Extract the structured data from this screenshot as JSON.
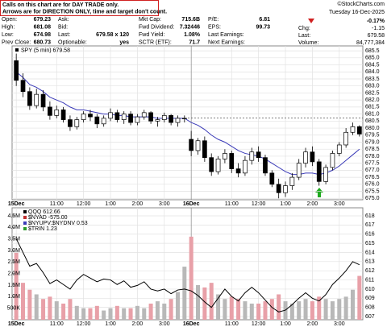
{
  "header": {
    "notice": [
      "Calls on this chart are for DAY TRADE only.",
      "Arrows are for DIRECTION ONLY, time and target don't count."
    ],
    "watermark": "©StockCharts.com",
    "date": "Tuesday 16-Dec-2025",
    "change_pct": "-0.17%",
    "quote": [
      [
        {
          "label": "Open:",
          "value": "679.23"
        },
        {
          "label": "Ask:"
        },
        {
          "label": "Mkt Cap:",
          "value": "715.6B"
        },
        {
          "label": "P/E:",
          "value": "6.81"
        }
      ],
      [
        {
          "label": "High:",
          "value": "681.08"
        },
        {
          "label": "Bid:"
        },
        {
          "label": "Fwd Dividend:",
          "value": "7.32446"
        },
        {
          "label": "EPS:",
          "value": "99.73"
        }
      ],
      [
        {
          "label": "Low:",
          "value": "674.98"
        },
        {
          "label": "Last:",
          "value": "679.58 x 120"
        },
        {
          "label": "Fwd Yield:",
          "value": "1.08%"
        },
        {
          "label": "Last Earnings:"
        }
      ],
      [
        {
          "label": "Prev Close:",
          "value": "680.73"
        },
        {
          "label": "Optionable:",
          "value": "yes"
        },
        {
          "label": "SCTR (ETF):",
          "value": "71.7"
        },
        {
          "label": "Next Earnings:"
        }
      ]
    ],
    "side": [
      {
        "label": "Chg:",
        "value": "-1.15"
      },
      {
        "label": "Last:",
        "value": "679.58"
      },
      {
        "label": "Volume:",
        "value": "84,777,384"
      }
    ]
  },
  "chart_data": [
    {
      "type": "candlestick",
      "title": "SPY (5 min) 679.58",
      "color": "#000000",
      "categories": [
        "15Dec",
        null,
        null,
        null,
        null,
        null,
        "11:00",
        null,
        null,
        null,
        "12:00",
        null,
        null,
        null,
        "1:00",
        null,
        null,
        null,
        "2:00",
        null,
        null,
        null,
        "3:00",
        null,
        null,
        null,
        "16Dec",
        null,
        null,
        null,
        null,
        null,
        "11:00",
        null,
        null,
        null,
        "12:00",
        null,
        null,
        null,
        "1:00",
        null,
        null,
        null,
        "2:00",
        null,
        null,
        null,
        "3:00",
        null,
        null,
        null
      ],
      "open": [
        684.8,
        683.4,
        682.6,
        681.6,
        682.4,
        681.5,
        680.9,
        681.3,
        680.6,
        680.1,
        680.6,
        681.0,
        680.8,
        680.3,
        680.7,
        681.1,
        680.6,
        681.0,
        680.4,
        680.8,
        681.1,
        680.5,
        680.6,
        680.9,
        680.4,
        680.7,
        679.2,
        678.4,
        679.1,
        677.9,
        676.9,
        677.8,
        678.2,
        677.1,
        676.8,
        677.7,
        678.3,
        677.9,
        676.8,
        676.0,
        675.4,
        675.9,
        676.5,
        677.5,
        678.3,
        677.6,
        676.2,
        677.2,
        678.2,
        678.8,
        679.7,
        680.1
      ],
      "high": [
        685.3,
        683.9,
        682.9,
        682.8,
        682.7,
        681.9,
        681.6,
        681.5,
        680.9,
        680.8,
        681.2,
        681.3,
        681.0,
        680.9,
        681.4,
        681.3,
        681.2,
        681.2,
        681.0,
        681.3,
        681.2,
        680.8,
        681.1,
        681.0,
        680.9,
        680.9,
        679.8,
        679.3,
        679.4,
        678.2,
        678.0,
        678.5,
        678.4,
        677.5,
        678.0,
        678.6,
        678.7,
        678.1,
        677.0,
        676.4,
        676.2,
        676.8,
        677.8,
        678.6,
        678.7,
        677.8,
        677.4,
        678.4,
        679.0,
        680.0,
        680.4,
        680.2
      ],
      "low": [
        683.0,
        682.2,
        681.3,
        681.4,
        681.2,
        680.6,
        680.7,
        680.4,
        679.8,
        679.9,
        680.4,
        680.5,
        680.0,
        680.1,
        680.5,
        680.4,
        680.3,
        680.2,
        680.2,
        680.6,
        680.3,
        680.1,
        680.4,
        680.2,
        680.1,
        680.4,
        678.0,
        678.1,
        677.6,
        676.6,
        676.7,
        677.5,
        676.8,
        676.5,
        676.6,
        677.4,
        677.6,
        676.6,
        675.8,
        675.0,
        675.1,
        675.6,
        676.3,
        677.2,
        677.3,
        675.9,
        676.0,
        677.0,
        678.0,
        678.6,
        679.5,
        679.4
      ],
      "close": [
        683.4,
        682.6,
        681.6,
        682.4,
        681.5,
        680.9,
        681.3,
        680.6,
        680.1,
        680.6,
        681.0,
        680.8,
        680.3,
        680.7,
        681.1,
        680.6,
        681.0,
        680.4,
        680.8,
        681.1,
        680.5,
        680.6,
        680.9,
        680.4,
        680.7,
        680.7,
        678.4,
        679.1,
        677.9,
        676.9,
        677.8,
        678.2,
        677.1,
        676.8,
        677.7,
        678.3,
        677.9,
        676.8,
        676.0,
        675.4,
        675.9,
        676.5,
        677.5,
        678.3,
        677.6,
        676.2,
        677.2,
        678.2,
        678.8,
        679.7,
        680.1,
        679.58
      ],
      "ma": {
        "color": "#3a3ab8",
        "values": [
          684.0,
          683.6,
          683.1,
          682.9,
          682.6,
          682.2,
          682.0,
          681.8,
          681.5,
          681.3,
          681.3,
          681.2,
          681.1,
          681.0,
          681.0,
          680.9,
          680.9,
          680.8,
          680.8,
          680.8,
          680.8,
          680.7,
          680.7,
          680.7,
          680.7,
          680.7,
          680.4,
          680.2,
          679.9,
          679.5,
          679.2,
          679.0,
          678.7,
          678.4,
          678.2,
          678.1,
          678.0,
          677.8,
          677.5,
          677.2,
          676.9,
          676.7,
          676.7,
          676.8,
          676.8,
          676.7,
          676.8,
          677.0,
          677.3,
          677.7,
          678.1,
          678.5
        ]
      },
      "reference_line": 680.73,
      "ylim": [
        674.9,
        685.85
      ],
      "yticks": [
        {
          "value": 675,
          "label": "675.0"
        },
        {
          "value": 675.5,
          "label": "675.5"
        },
        {
          "value": 676,
          "label": "676.0"
        },
        {
          "value": 676.5,
          "label": "676.5"
        },
        {
          "value": 677,
          "label": "677.0"
        },
        {
          "value": 677.5,
          "label": "677.5"
        },
        {
          "value": 678,
          "label": "678.0"
        },
        {
          "value": 678.5,
          "label": "678.5"
        },
        {
          "value": 679,
          "label": "679.0"
        },
        {
          "value": 679.5,
          "label": "679.5"
        },
        {
          "value": 680,
          "label": "680.0"
        },
        {
          "value": 680.5,
          "label": "680.5"
        },
        {
          "value": 681,
          "label": "681.0"
        },
        {
          "value": 681.5,
          "label": "681.5"
        },
        {
          "value": 682,
          "label": "682.0"
        },
        {
          "value": 682.5,
          "label": "682.5"
        },
        {
          "value": 683,
          "label": "683.0"
        },
        {
          "value": 683.5,
          "label": "683.5"
        },
        {
          "value": 684,
          "label": "684.0"
        },
        {
          "value": 684.5,
          "label": "684.5"
        },
        {
          "value": 685,
          "label": "685.0"
        },
        {
          "value": 685.5,
          "label": "685.5"
        }
      ],
      "grid": true
    },
    {
      "type": "combo",
      "categories": [
        "15Dec",
        null,
        null,
        null,
        null,
        null,
        "11:00",
        null,
        null,
        null,
        "12:00",
        null,
        null,
        null,
        "1:00",
        null,
        null,
        null,
        "2:00",
        null,
        null,
        null,
        "3:00",
        null,
        null,
        null,
        "16Dec",
        null,
        null,
        null,
        null,
        null,
        "11:00",
        null,
        null,
        null,
        "12:00",
        null,
        null,
        null,
        "1:00",
        null,
        null,
        null,
        "2:00",
        null,
        null,
        null,
        "3:00",
        null,
        null,
        null
      ],
      "volume": {
        "up_color": "#b8b8b8",
        "down_color": "#e8a0a8",
        "values": [
          2900000,
          1600000,
          1300000,
          1100000,
          900000,
          1000000,
          800000,
          700000,
          900000,
          600000,
          500000,
          500000,
          600000,
          400000,
          500000,
          600000,
          500000,
          500000,
          600000,
          500000,
          700000,
          800000,
          700000,
          900000,
          1200000,
          2300000,
          3600000,
          1500000,
          1400000,
          1600000,
          1100000,
          900000,
          1000000,
          900000,
          800000,
          700000,
          700000,
          800000,
          900000,
          1100000,
          800000,
          700000,
          800000,
          900000,
          800000,
          1000000,
          900000,
          800000,
          900000,
          1000000,
          1300000,
          1900000
        ]
      },
      "series": [
        {
          "name": "QQQ 612.66",
          "color": "#000000",
          "axis": "y2",
          "values": [
            615.5,
            614.0,
            612.5,
            612.8,
            611.8,
            610.6,
            611.0,
            610.5,
            610.0,
            611.0,
            611.6,
            611.2,
            610.8,
            611.1,
            611.0,
            610.5,
            610.9,
            610.2,
            610.4,
            610.8,
            610.0,
            609.8,
            610.0,
            609.5,
            609.9,
            610.0,
            609.8,
            609.3,
            608.6,
            608.0,
            609.0,
            610.0,
            609.2,
            608.7,
            609.6,
            610.2,
            609.6,
            608.8,
            608.0,
            607.5,
            607.7,
            608.3,
            609.0,
            609.6,
            609.0,
            608.7,
            609.4,
            610.5,
            611.2,
            612.0,
            613.0,
            612.66
          ]
        }
      ],
      "legend_entries": [
        {
          "name": "$NYAD -575.00",
          "color": "#c03030"
        },
        {
          "name": "$NYUPV:$NYDNV 0.53",
          "color": "#3a3ab8"
        },
        {
          "name": "$TRIN 1.23",
          "color": "#2a9a2a"
        }
      ],
      "ylim": [
        0,
        4850000
      ],
      "yticks": [
        {
          "value": 500000,
          "label": "500K"
        },
        {
          "value": 1000000,
          "label": "1.0M"
        },
        {
          "value": 1500000,
          "label": "1.5M"
        },
        {
          "value": 2000000,
          "label": "2.0M"
        },
        {
          "value": 2500000,
          "label": "2.5M"
        },
        {
          "value": 3000000,
          "label": "3.0M"
        },
        {
          "value": 3500000,
          "label": "3.5M"
        },
        {
          "value": 4000000,
          "label": "4.0M"
        },
        {
          "value": 4500000,
          "label": "4.5M"
        }
      ],
      "y2lim": [
        606.65,
        618.88
      ],
      "y2ticks": [
        607,
        608,
        609,
        610,
        611,
        612,
        613,
        614,
        615,
        616,
        617,
        618
      ],
      "grid": true
    }
  ]
}
